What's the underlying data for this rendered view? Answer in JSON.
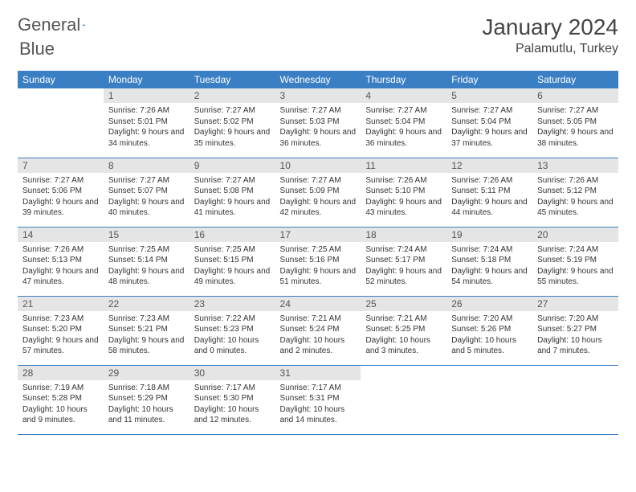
{
  "brand": {
    "word1": "General",
    "word2": "Blue"
  },
  "title": "January 2024",
  "location": "Palamutlu, Turkey",
  "colors": {
    "header_bg": "#3a7fc4",
    "header_fg": "#ffffff",
    "daynum_bg": "#e5e5e5",
    "divider": "#3a7fc4",
    "text": "#333333"
  },
  "days_of_week": [
    "Sunday",
    "Monday",
    "Tuesday",
    "Wednesday",
    "Thursday",
    "Friday",
    "Saturday"
  ],
  "weeks": [
    [
      {
        "empty": true
      },
      {
        "n": "1",
        "sunrise": "7:26 AM",
        "sunset": "5:01 PM",
        "daylight": "9 hours and 34 minutes."
      },
      {
        "n": "2",
        "sunrise": "7:27 AM",
        "sunset": "5:02 PM",
        "daylight": "9 hours and 35 minutes."
      },
      {
        "n": "3",
        "sunrise": "7:27 AM",
        "sunset": "5:03 PM",
        "daylight": "9 hours and 36 minutes."
      },
      {
        "n": "4",
        "sunrise": "7:27 AM",
        "sunset": "5:04 PM",
        "daylight": "9 hours and 36 minutes."
      },
      {
        "n": "5",
        "sunrise": "7:27 AM",
        "sunset": "5:04 PM",
        "daylight": "9 hours and 37 minutes."
      },
      {
        "n": "6",
        "sunrise": "7:27 AM",
        "sunset": "5:05 PM",
        "daylight": "9 hours and 38 minutes."
      }
    ],
    [
      {
        "n": "7",
        "sunrise": "7:27 AM",
        "sunset": "5:06 PM",
        "daylight": "9 hours and 39 minutes."
      },
      {
        "n": "8",
        "sunrise": "7:27 AM",
        "sunset": "5:07 PM",
        "daylight": "9 hours and 40 minutes."
      },
      {
        "n": "9",
        "sunrise": "7:27 AM",
        "sunset": "5:08 PM",
        "daylight": "9 hours and 41 minutes."
      },
      {
        "n": "10",
        "sunrise": "7:27 AM",
        "sunset": "5:09 PM",
        "daylight": "9 hours and 42 minutes."
      },
      {
        "n": "11",
        "sunrise": "7:26 AM",
        "sunset": "5:10 PM",
        "daylight": "9 hours and 43 minutes."
      },
      {
        "n": "12",
        "sunrise": "7:26 AM",
        "sunset": "5:11 PM",
        "daylight": "9 hours and 44 minutes."
      },
      {
        "n": "13",
        "sunrise": "7:26 AM",
        "sunset": "5:12 PM",
        "daylight": "9 hours and 45 minutes."
      }
    ],
    [
      {
        "n": "14",
        "sunrise": "7:26 AM",
        "sunset": "5:13 PM",
        "daylight": "9 hours and 47 minutes."
      },
      {
        "n": "15",
        "sunrise": "7:25 AM",
        "sunset": "5:14 PM",
        "daylight": "9 hours and 48 minutes."
      },
      {
        "n": "16",
        "sunrise": "7:25 AM",
        "sunset": "5:15 PM",
        "daylight": "9 hours and 49 minutes."
      },
      {
        "n": "17",
        "sunrise": "7:25 AM",
        "sunset": "5:16 PM",
        "daylight": "9 hours and 51 minutes."
      },
      {
        "n": "18",
        "sunrise": "7:24 AM",
        "sunset": "5:17 PM",
        "daylight": "9 hours and 52 minutes."
      },
      {
        "n": "19",
        "sunrise": "7:24 AM",
        "sunset": "5:18 PM",
        "daylight": "9 hours and 54 minutes."
      },
      {
        "n": "20",
        "sunrise": "7:24 AM",
        "sunset": "5:19 PM",
        "daylight": "9 hours and 55 minutes."
      }
    ],
    [
      {
        "n": "21",
        "sunrise": "7:23 AM",
        "sunset": "5:20 PM",
        "daylight": "9 hours and 57 minutes."
      },
      {
        "n": "22",
        "sunrise": "7:23 AM",
        "sunset": "5:21 PM",
        "daylight": "9 hours and 58 minutes."
      },
      {
        "n": "23",
        "sunrise": "7:22 AM",
        "sunset": "5:23 PM",
        "daylight": "10 hours and 0 minutes."
      },
      {
        "n": "24",
        "sunrise": "7:21 AM",
        "sunset": "5:24 PM",
        "daylight": "10 hours and 2 minutes."
      },
      {
        "n": "25",
        "sunrise": "7:21 AM",
        "sunset": "5:25 PM",
        "daylight": "10 hours and 3 minutes."
      },
      {
        "n": "26",
        "sunrise": "7:20 AM",
        "sunset": "5:26 PM",
        "daylight": "10 hours and 5 minutes."
      },
      {
        "n": "27",
        "sunrise": "7:20 AM",
        "sunset": "5:27 PM",
        "daylight": "10 hours and 7 minutes."
      }
    ],
    [
      {
        "n": "28",
        "sunrise": "7:19 AM",
        "sunset": "5:28 PM",
        "daylight": "10 hours and 9 minutes."
      },
      {
        "n": "29",
        "sunrise": "7:18 AM",
        "sunset": "5:29 PM",
        "daylight": "10 hours and 11 minutes."
      },
      {
        "n": "30",
        "sunrise": "7:17 AM",
        "sunset": "5:30 PM",
        "daylight": "10 hours and 12 minutes."
      },
      {
        "n": "31",
        "sunrise": "7:17 AM",
        "sunset": "5:31 PM",
        "daylight": "10 hours and 14 minutes."
      },
      {
        "empty": true
      },
      {
        "empty": true
      },
      {
        "empty": true
      }
    ]
  ],
  "labels": {
    "sunrise": "Sunrise:",
    "sunset": "Sunset:",
    "daylight": "Daylight:"
  }
}
